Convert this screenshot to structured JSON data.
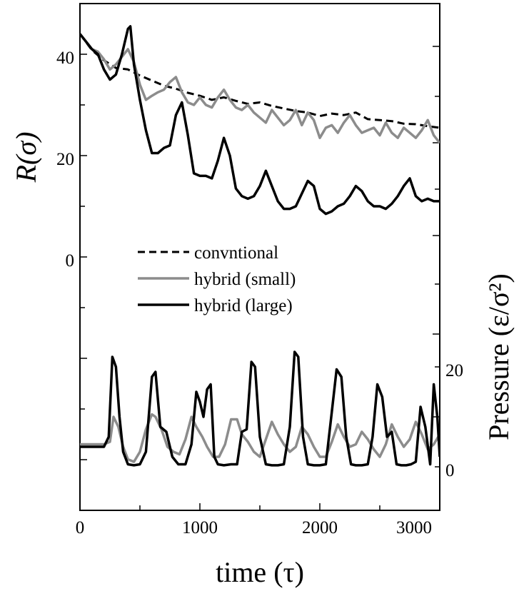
{
  "chart_data": {
    "type": "line",
    "xlabel": "time  (τ)",
    "x_ticks": [
      "0",
      "1000",
      "2000",
      "3000"
    ],
    "xlim": [
      0,
      3000
    ],
    "left_axis": {
      "label": "R(σ)",
      "ticks": [
        "0",
        "20",
        "40"
      ],
      "ylim": [
        -50,
        50
      ]
    },
    "right_axis": {
      "label": "Pressure (ε/σ²)",
      "ticks": [
        "0",
        "20"
      ],
      "ylim": [
        -10,
        50
      ]
    },
    "legend": {
      "placement": "center-left",
      "entries": [
        {
          "label": "convntional",
          "series": "conventional"
        },
        {
          "label": "hybrid (small)",
          "series": "hybrid_small"
        },
        {
          "label": "hybrid (large)",
          "series": "hybrid_large"
        }
      ]
    },
    "series": [
      {
        "id": "conventional",
        "name": "convntional",
        "axis": "left",
        "color": "#000000",
        "dash": "dashed",
        "x": [
          0,
          100,
          200,
          300,
          400,
          500,
          600,
          700,
          800,
          900,
          1000,
          1100,
          1200,
          1300,
          1400,
          1500,
          1600,
          1700,
          1800,
          1900,
          2000,
          2100,
          2200,
          2300,
          2400,
          2500,
          2600,
          2700,
          2800,
          2900,
          3000
        ],
        "y": [
          44.0,
          40.8,
          38.8,
          37.3,
          37.0,
          35.8,
          34.8,
          33.8,
          33.2,
          32.4,
          31.8,
          31.0,
          31.5,
          30.8,
          30.2,
          30.5,
          29.8,
          29.3,
          28.8,
          28.5,
          27.8,
          28.3,
          28.0,
          28.5,
          27.2,
          27.0,
          26.8,
          26.3,
          26.2,
          25.8,
          25.5
        ]
      },
      {
        "id": "hybrid_small",
        "name": "hybrid (small)",
        "axis": "left",
        "color": "#8c8c8c",
        "dash": "solid",
        "x": [
          0,
          100,
          150,
          200,
          250,
          300,
          350,
          400,
          450,
          500,
          550,
          600,
          650,
          700,
          750,
          800,
          850,
          900,
          950,
          1000,
          1050,
          1100,
          1150,
          1200,
          1250,
          1300,
          1350,
          1400,
          1450,
          1500,
          1550,
          1600,
          1650,
          1700,
          1750,
          1800,
          1850,
          1900,
          1950,
          2000,
          2050,
          2100,
          2150,
          2200,
          2250,
          2300,
          2350,
          2400,
          2450,
          2500,
          2550,
          2600,
          2650,
          2700,
          2750,
          2800,
          2850,
          2900,
          2950,
          3000
        ],
        "y": [
          44.0,
          41.0,
          40.5,
          39.0,
          37.0,
          38.0,
          39.5,
          41.0,
          38.5,
          34.0,
          31.0,
          31.8,
          32.5,
          33.0,
          34.5,
          35.5,
          32.5,
          30.5,
          30.0,
          31.5,
          30.0,
          29.5,
          31.5,
          33.0,
          31.0,
          29.5,
          29.0,
          30.0,
          28.5,
          27.5,
          26.5,
          29.0,
          27.5,
          26.0,
          27.0,
          29.0,
          26.0,
          28.5,
          27.0,
          23.5,
          25.5,
          26.0,
          24.5,
          26.5,
          28.0,
          26.0,
          24.5,
          25.0,
          25.5,
          24.0,
          26.5,
          24.5,
          23.5,
          25.5,
          24.5,
          23.5,
          25.0,
          27.0,
          24.0,
          22.5
        ]
      },
      {
        "id": "hybrid_large",
        "name": "hybrid (large)",
        "axis": "left",
        "color": "#000000",
        "dash": "solid",
        "x": [
          0,
          100,
          150,
          200,
          250,
          300,
          350,
          400,
          420,
          450,
          500,
          550,
          600,
          650,
          700,
          750,
          800,
          850,
          900,
          950,
          1000,
          1050,
          1100,
          1150,
          1200,
          1250,
          1300,
          1350,
          1400,
          1450,
          1500,
          1550,
          1600,
          1650,
          1700,
          1750,
          1800,
          1850,
          1900,
          1950,
          2000,
          2050,
          2100,
          2150,
          2200,
          2250,
          2300,
          2350,
          2400,
          2450,
          2500,
          2550,
          2600,
          2650,
          2700,
          2750,
          2800,
          2850,
          2900,
          2950,
          3000
        ],
        "y": [
          44.0,
          41.0,
          40.0,
          37.0,
          35.0,
          36.0,
          40.0,
          45.0,
          45.5,
          38.0,
          31.0,
          25.0,
          20.5,
          20.5,
          21.5,
          22.0,
          28.0,
          30.5,
          24.0,
          16.5,
          16.0,
          16.0,
          15.5,
          19.0,
          23.5,
          20.0,
          13.5,
          12.0,
          11.5,
          12.0,
          14.0,
          17.0,
          14.0,
          11.0,
          9.5,
          9.5,
          10.0,
          12.5,
          15.0,
          14.0,
          9.5,
          8.5,
          9.0,
          10.0,
          10.5,
          12.0,
          14.0,
          13.0,
          11.0,
          10.0,
          10.0,
          9.5,
          10.5,
          12.0,
          14.0,
          15.5,
          12.0,
          11.0,
          11.5,
          11.0,
          11.0
        ]
      },
      {
        "id": "pressure_small",
        "name": "",
        "axis": "right",
        "color": "#8c8c8c",
        "dash": "solid",
        "x": [
          0,
          100,
          200,
          250,
          280,
          320,
          360,
          400,
          450,
          500,
          550,
          600,
          630,
          680,
          730,
          780,
          830,
          880,
          930,
          970,
          1020,
          1060,
          1110,
          1160,
          1210,
          1260,
          1310,
          1350,
          1400,
          1450,
          1500,
          1550,
          1600,
          1650,
          1700,
          1750,
          1800,
          1850,
          1900,
          1950,
          2000,
          2050,
          2100,
          2150,
          2200,
          2250,
          2300,
          2350,
          2400,
          2450,
          2500,
          2550,
          2600,
          2650,
          2700,
          2750,
          2800,
          2850,
          2900,
          2950,
          3000
        ],
        "y": [
          4.5,
          4.5,
          4.5,
          5.0,
          10.0,
          8.0,
          4.0,
          1.5,
          1.0,
          3.0,
          7.5,
          10.5,
          10.0,
          7.5,
          4.0,
          3.0,
          2.5,
          5.5,
          10.0,
          8.0,
          6.0,
          4.0,
          2.0,
          2.0,
          4.5,
          9.5,
          9.5,
          6.5,
          5.0,
          3.0,
          2.0,
          5.5,
          9.0,
          6.5,
          4.5,
          3.0,
          4.0,
          8.0,
          6.5,
          4.0,
          2.0,
          2.0,
          5.0,
          8.5,
          6.0,
          4.0,
          4.5,
          7.0,
          5.5,
          3.5,
          2.0,
          4.5,
          8.5,
          6.0,
          4.0,
          5.5,
          9.0,
          6.5,
          3.5,
          4.5,
          6.5
        ]
      },
      {
        "id": "pressure_large",
        "name": "",
        "axis": "right",
        "color": "#000000",
        "dash": "solid",
        "x": [
          0,
          100,
          200,
          240,
          270,
          300,
          330,
          360,
          400,
          450,
          500,
          550,
          600,
          630,
          670,
          720,
          770,
          820,
          880,
          930,
          970,
          1000,
          1030,
          1060,
          1090,
          1120,
          1150,
          1200,
          1260,
          1310,
          1350,
          1390,
          1430,
          1460,
          1500,
          1550,
          1600,
          1650,
          1700,
          1750,
          1790,
          1820,
          1860,
          1900,
          1950,
          2000,
          2050,
          2100,
          2140,
          2180,
          2220,
          2260,
          2300,
          2350,
          2400,
          2440,
          2480,
          2520,
          2560,
          2600,
          2640,
          2680,
          2720,
          2760,
          2800,
          2840,
          2880,
          2920,
          2950,
          2980,
          3000
        ],
        "y": [
          4.0,
          4.0,
          4.0,
          6.0,
          22.0,
          20.0,
          10.0,
          3.0,
          0.5,
          0.3,
          0.5,
          3.0,
          18.0,
          19.0,
          8.0,
          7.0,
          2.0,
          0.5,
          0.5,
          4.5,
          15.0,
          13.0,
          10.0,
          15.5,
          16.5,
          2.0,
          0.5,
          0.3,
          0.5,
          0.5,
          7.0,
          7.5,
          21.0,
          20.0,
          6.0,
          0.5,
          0.3,
          0.3,
          0.5,
          8.0,
          23.0,
          22.0,
          6.0,
          0.5,
          0.3,
          0.3,
          0.5,
          11.0,
          19.5,
          18.0,
          6.0,
          0.5,
          0.3,
          0.3,
          0.5,
          6.0,
          16.5,
          14.0,
          6.0,
          7.0,
          0.5,
          0.3,
          0.3,
          0.5,
          1.0,
          12.0,
          8.0,
          0.5,
          16.5,
          10.0,
          2.0
        ]
      }
    ]
  }
}
